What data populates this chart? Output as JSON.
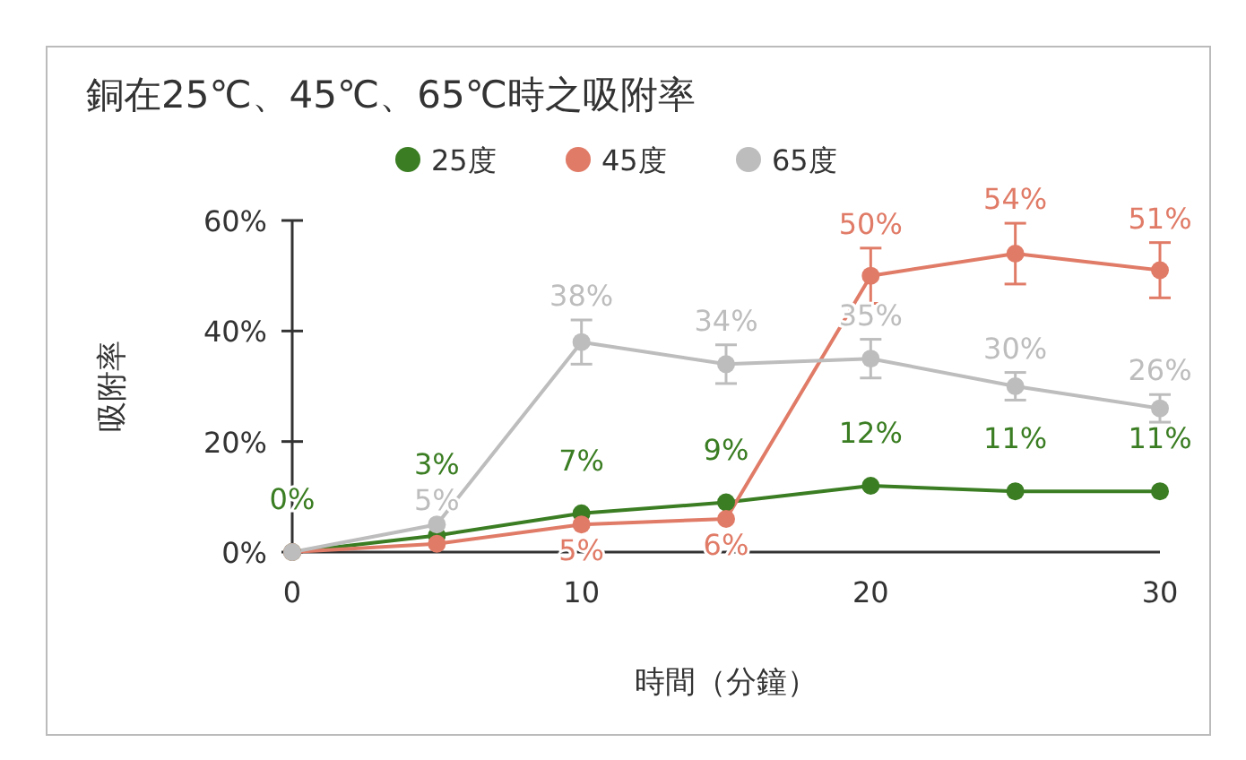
{
  "chart_data": {
    "type": "line",
    "title": "銅在25℃、45℃、65℃時之吸附率",
    "xlabel": "時間（分鐘）",
    "ylabel": "吸附率",
    "x": [
      0,
      5,
      10,
      15,
      20,
      25,
      30
    ],
    "xlim": [
      0,
      30
    ],
    "xticks": [
      0,
      10,
      20,
      30
    ],
    "ylim": [
      0,
      60
    ],
    "yticks": [
      {
        "value": 0,
        "label": "0%"
      },
      {
        "value": 20,
        "label": "20%"
      },
      {
        "value": 40,
        "label": "40%"
      },
      {
        "value": 60,
        "label": "60%"
      }
    ],
    "series": [
      {
        "name": "25度",
        "color": "#3a7d22",
        "values": [
          0,
          3,
          7,
          9,
          12,
          11,
          11
        ],
        "value_labels": [
          "0%",
          "3%",
          "7%",
          "9%",
          "12%",
          "11%",
          "11%"
        ]
      },
      {
        "name": "45度",
        "color": "#e07b67",
        "values": [
          0,
          1.5,
          5,
          6,
          50,
          54,
          51
        ],
        "value_labels": [
          null,
          null,
          "5%",
          "6%",
          "50%",
          "54%",
          "51%"
        ],
        "errors": [
          null,
          null,
          null,
          null,
          5,
          5.5,
          5
        ]
      },
      {
        "name": "65度",
        "color": "#bdbdbd",
        "values": [
          0,
          5,
          38,
          34,
          35,
          30,
          26
        ],
        "value_labels": [
          null,
          "5%",
          "38%",
          "34%",
          "35%",
          "30%",
          "26%"
        ],
        "errors": [
          null,
          null,
          4,
          3.5,
          3.5,
          2.5,
          2.5
        ]
      }
    ],
    "legend": "top",
    "marker": "circle",
    "line_style": "solid",
    "grid": false
  }
}
